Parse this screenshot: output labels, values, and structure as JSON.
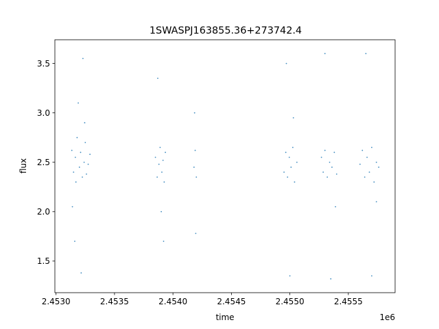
{
  "chart_data": {
    "type": "scatter",
    "title": "1SWASPJ163855.36+273742.4",
    "xlabel": "time",
    "ylabel": "flux",
    "x_offset_label": "1e6",
    "xlim": [
      2452990,
      2455900
    ],
    "ylim": [
      1.18,
      3.74
    ],
    "grid": false,
    "legend": "none",
    "marker_color": "#1f77b4",
    "x_ticks": [
      {
        "value": 2453000,
        "label": "2.4530"
      },
      {
        "value": 2453500,
        "label": "2.4535"
      },
      {
        "value": 2454000,
        "label": "2.4540"
      },
      {
        "value": 2454500,
        "label": "2.4545"
      },
      {
        "value": 2455000,
        "label": "2.4550"
      },
      {
        "value": 2455500,
        "label": "2.4555"
      }
    ],
    "y_ticks": [
      {
        "value": 1.5,
        "label": "1.5"
      },
      {
        "value": 2.0,
        "label": "2.0"
      },
      {
        "value": 2.5,
        "label": "2.5"
      },
      {
        "value": 3.0,
        "label": "3.0"
      },
      {
        "value": 3.5,
        "label": "3.5"
      }
    ],
    "series": [
      {
        "x": [
          2453135,
          2453150,
          2453165,
          2453170,
          2453180,
          2453200,
          2453210,
          2453225,
          2453240,
          2453250,
          2453260,
          2453275,
          2453290,
          2453140,
          2453190,
          2453230,
          2453160,
          2453215,
          2453245,
          2453850,
          2453865,
          2453880,
          2453890,
          2453905,
          2453915,
          2453925,
          2453935,
          2453870,
          2453900,
          2453920,
          2454180,
          2454190,
          2454200,
          2454185,
          2454195,
          2454950,
          2454965,
          2454980,
          2454995,
          2455010,
          2455025,
          2455040,
          2455060,
          2454970,
          2455000,
          2455030,
          2455270,
          2455285,
          2455300,
          2455320,
          2455340,
          2455360,
          2455380,
          2455400,
          2455300,
          2455350,
          2455390,
          2455600,
          2455620,
          2455640,
          2455660,
          2455680,
          2455700,
          2455720,
          2455740,
          2455760,
          2455650,
          2455700,
          2455740
        ],
        "y": [
          2.62,
          2.4,
          2.55,
          2.3,
          2.75,
          2.45,
          2.6,
          2.35,
          2.5,
          2.7,
          2.38,
          2.48,
          2.58,
          2.05,
          3.1,
          3.55,
          1.7,
          1.38,
          2.9,
          2.55,
          2.35,
          2.48,
          2.65,
          2.4,
          2.52,
          2.3,
          2.6,
          3.35,
          2.0,
          1.7,
          2.45,
          2.62,
          2.35,
          3.0,
          1.78,
          2.4,
          2.6,
          2.35,
          2.55,
          2.45,
          2.65,
          2.3,
          2.5,
          3.5,
          1.35,
          2.95,
          2.55,
          2.4,
          2.62,
          2.35,
          2.5,
          2.45,
          2.6,
          2.38,
          3.6,
          1.32,
          2.05,
          2.48,
          2.62,
          2.35,
          2.55,
          2.4,
          2.65,
          2.3,
          2.5,
          2.45,
          3.6,
          1.35,
          2.1
        ]
      }
    ]
  }
}
